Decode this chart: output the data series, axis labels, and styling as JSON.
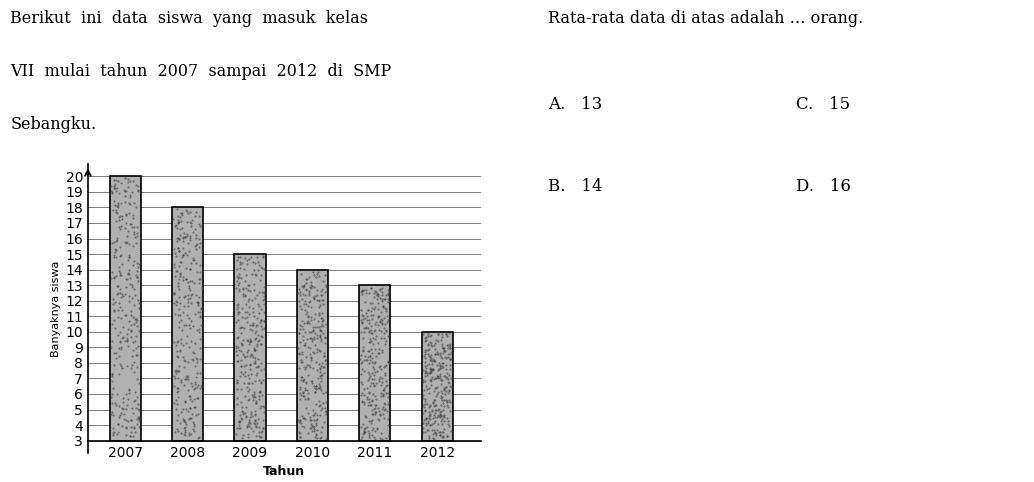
{
  "years": [
    "2007",
    "2008",
    "2009",
    "2010",
    "2011",
    "2012"
  ],
  "values": [
    20,
    18,
    15,
    14,
    13,
    10
  ],
  "bar_color": "#b0b0b0",
  "bar_edgecolor": "#000000",
  "ylabel": "Banyaknya siswa",
  "xlabel": "Tahun",
  "yticks": [
    3,
    4,
    5,
    6,
    7,
    8,
    9,
    10,
    11,
    12,
    13,
    14,
    15,
    16,
    17,
    18,
    19,
    20
  ],
  "ymin": 2.2,
  "ymax": 20.8,
  "text_left_line1": "Berikut  ini  data  siswa  yang  masuk  kelas",
  "text_left_line2": "VII  mulai  tahun  2007  sampai  2012  di  SMP",
  "text_left_line3": "Sebangku.",
  "text_right_title": "Rata-rata data di atas adalah … orang.",
  "text_right_A": "A.   13",
  "text_right_C": "C.   15",
  "text_right_B": "B.   14",
  "text_right_D": "D.   16",
  "background_color": "#ffffff",
  "bar_bottom": 3,
  "hatch": ""
}
